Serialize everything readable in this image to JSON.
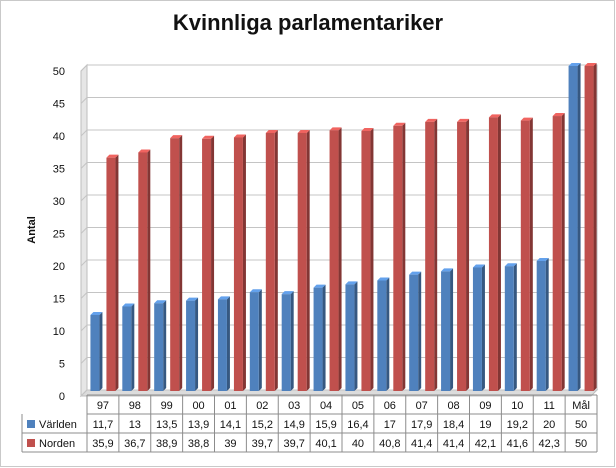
{
  "chart_data": {
    "type": "bar",
    "title": "Kvinnliga parlamentariker",
    "ylabel": "Antal",
    "ylim": [
      0,
      50
    ],
    "yticks": [
      0,
      5,
      10,
      15,
      20,
      25,
      30,
      35,
      40,
      45,
      50
    ],
    "grid": true,
    "legend": "data-table-left",
    "categories": [
      "97",
      "98",
      "99",
      "00",
      "01",
      "02",
      "03",
      "04",
      "05",
      "06",
      "07",
      "08",
      "09",
      "10",
      "11",
      "Mål"
    ],
    "series": [
      {
        "name": "Världen",
        "color": "#4f81bd",
        "values": [
          11.7,
          13,
          13.5,
          13.9,
          14.1,
          15.2,
          14.9,
          15.9,
          16.4,
          17,
          17.9,
          18.4,
          19,
          19.2,
          20,
          50
        ],
        "labels": [
          "11,7",
          "13",
          "13,5",
          "13,9",
          "14,1",
          "15,2",
          "14,9",
          "15,9",
          "16,4",
          "17",
          "17,9",
          "18,4",
          "19",
          "19,2",
          "20",
          "50"
        ]
      },
      {
        "name": "Norden",
        "color": "#c0504d",
        "values": [
          35.9,
          36.7,
          38.9,
          38.8,
          39,
          39.7,
          39.7,
          40.1,
          40,
          40.8,
          41.4,
          41.4,
          42.1,
          41.6,
          42.3,
          50
        ],
        "labels": [
          "35,9",
          "36,7",
          "38,9",
          "38,8",
          "39",
          "39,7",
          "39,7",
          "40,1",
          "40",
          "40,8",
          "41,4",
          "41,4",
          "42,1",
          "41,6",
          "42,3",
          "50"
        ]
      }
    ]
  }
}
